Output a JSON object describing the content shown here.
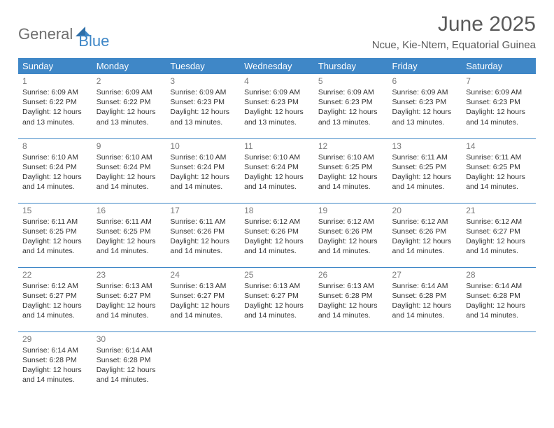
{
  "logo": {
    "word1": "General",
    "word2": "Blue"
  },
  "header": {
    "title": "June 2025",
    "location": "Ncue, Kie-Ntem, Equatorial Guinea"
  },
  "style": {
    "accent": "#3f87c7",
    "header_text": "#ffffff",
    "logo_gray": "#6f6f6f",
    "title_color": "#5a5a5a"
  },
  "weekdays": [
    "Sunday",
    "Monday",
    "Tuesday",
    "Wednesday",
    "Thursday",
    "Friday",
    "Saturday"
  ],
  "days": [
    {
      "n": "1",
      "sr": "6:09 AM",
      "ss": "6:22 PM",
      "dl": "12 hours and 13 minutes."
    },
    {
      "n": "2",
      "sr": "6:09 AM",
      "ss": "6:22 PM",
      "dl": "12 hours and 13 minutes."
    },
    {
      "n": "3",
      "sr": "6:09 AM",
      "ss": "6:23 PM",
      "dl": "12 hours and 13 minutes."
    },
    {
      "n": "4",
      "sr": "6:09 AM",
      "ss": "6:23 PM",
      "dl": "12 hours and 13 minutes."
    },
    {
      "n": "5",
      "sr": "6:09 AM",
      "ss": "6:23 PM",
      "dl": "12 hours and 13 minutes."
    },
    {
      "n": "6",
      "sr": "6:09 AM",
      "ss": "6:23 PM",
      "dl": "12 hours and 13 minutes."
    },
    {
      "n": "7",
      "sr": "6:09 AM",
      "ss": "6:23 PM",
      "dl": "12 hours and 14 minutes."
    },
    {
      "n": "8",
      "sr": "6:10 AM",
      "ss": "6:24 PM",
      "dl": "12 hours and 14 minutes."
    },
    {
      "n": "9",
      "sr": "6:10 AM",
      "ss": "6:24 PM",
      "dl": "12 hours and 14 minutes."
    },
    {
      "n": "10",
      "sr": "6:10 AM",
      "ss": "6:24 PM",
      "dl": "12 hours and 14 minutes."
    },
    {
      "n": "11",
      "sr": "6:10 AM",
      "ss": "6:24 PM",
      "dl": "12 hours and 14 minutes."
    },
    {
      "n": "12",
      "sr": "6:10 AM",
      "ss": "6:25 PM",
      "dl": "12 hours and 14 minutes."
    },
    {
      "n": "13",
      "sr": "6:11 AM",
      "ss": "6:25 PM",
      "dl": "12 hours and 14 minutes."
    },
    {
      "n": "14",
      "sr": "6:11 AM",
      "ss": "6:25 PM",
      "dl": "12 hours and 14 minutes."
    },
    {
      "n": "15",
      "sr": "6:11 AM",
      "ss": "6:25 PM",
      "dl": "12 hours and 14 minutes."
    },
    {
      "n": "16",
      "sr": "6:11 AM",
      "ss": "6:25 PM",
      "dl": "12 hours and 14 minutes."
    },
    {
      "n": "17",
      "sr": "6:11 AM",
      "ss": "6:26 PM",
      "dl": "12 hours and 14 minutes."
    },
    {
      "n": "18",
      "sr": "6:12 AM",
      "ss": "6:26 PM",
      "dl": "12 hours and 14 minutes."
    },
    {
      "n": "19",
      "sr": "6:12 AM",
      "ss": "6:26 PM",
      "dl": "12 hours and 14 minutes."
    },
    {
      "n": "20",
      "sr": "6:12 AM",
      "ss": "6:26 PM",
      "dl": "12 hours and 14 minutes."
    },
    {
      "n": "21",
      "sr": "6:12 AM",
      "ss": "6:27 PM",
      "dl": "12 hours and 14 minutes."
    },
    {
      "n": "22",
      "sr": "6:12 AM",
      "ss": "6:27 PM",
      "dl": "12 hours and 14 minutes."
    },
    {
      "n": "23",
      "sr": "6:13 AM",
      "ss": "6:27 PM",
      "dl": "12 hours and 14 minutes."
    },
    {
      "n": "24",
      "sr": "6:13 AM",
      "ss": "6:27 PM",
      "dl": "12 hours and 14 minutes."
    },
    {
      "n": "25",
      "sr": "6:13 AM",
      "ss": "6:27 PM",
      "dl": "12 hours and 14 minutes."
    },
    {
      "n": "26",
      "sr": "6:13 AM",
      "ss": "6:28 PM",
      "dl": "12 hours and 14 minutes."
    },
    {
      "n": "27",
      "sr": "6:14 AM",
      "ss": "6:28 PM",
      "dl": "12 hours and 14 minutes."
    },
    {
      "n": "28",
      "sr": "6:14 AM",
      "ss": "6:28 PM",
      "dl": "12 hours and 14 minutes."
    },
    {
      "n": "29",
      "sr": "6:14 AM",
      "ss": "6:28 PM",
      "dl": "12 hours and 14 minutes."
    },
    {
      "n": "30",
      "sr": "6:14 AM",
      "ss": "6:28 PM",
      "dl": "12 hours and 14 minutes."
    }
  ],
  "labels": {
    "sunrise": "Sunrise:",
    "sunset": "Sunset:",
    "daylight": "Daylight:"
  }
}
